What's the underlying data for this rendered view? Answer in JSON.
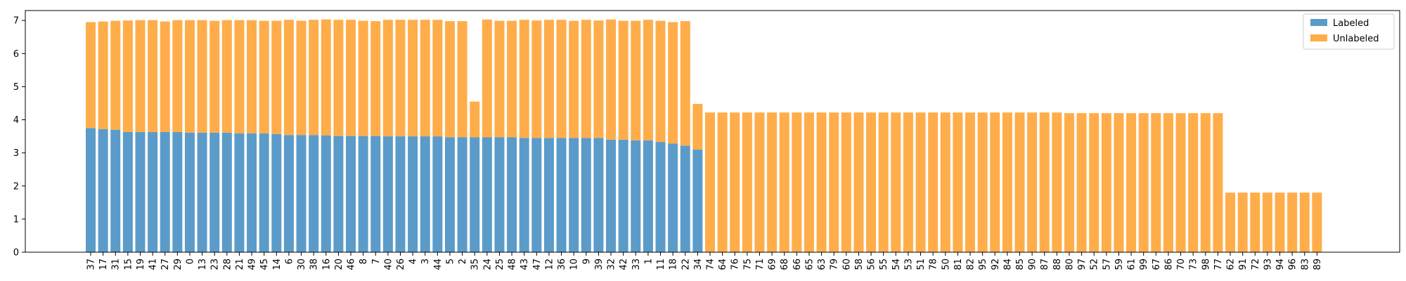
{
  "chart_data": {
    "type": "bar",
    "stacked": true,
    "title": "",
    "xlabel": "",
    "ylabel": "",
    "ylim": [
      0,
      7.3
    ],
    "yticks": [
      0,
      1,
      2,
      3,
      4,
      5,
      6,
      7
    ],
    "grid": false,
    "legend_position": "top-right",
    "categories": [
      "37",
      "17",
      "31",
      "15",
      "19",
      "41",
      "27",
      "29",
      "0",
      "13",
      "23",
      "28",
      "21",
      "49",
      "45",
      "14",
      "6",
      "30",
      "38",
      "16",
      "20",
      "46",
      "8",
      "7",
      "40",
      "26",
      "4",
      "3",
      "44",
      "5",
      "2",
      "35",
      "24",
      "25",
      "48",
      "43",
      "47",
      "12",
      "36",
      "10",
      "9",
      "39",
      "32",
      "42",
      "33",
      "1",
      "11",
      "18",
      "22",
      "34",
      "74",
      "64",
      "76",
      "75",
      "71",
      "69",
      "68",
      "66",
      "65",
      "63",
      "79",
      "60",
      "58",
      "56",
      "55",
      "54",
      "53",
      "51",
      "78",
      "50",
      "81",
      "82",
      "95",
      "92",
      "84",
      "85",
      "90",
      "87",
      "88",
      "80",
      "97",
      "52",
      "57",
      "59",
      "61",
      "99",
      "67",
      "86",
      "70",
      "73",
      "98",
      "77",
      "62",
      "91",
      "72",
      "93",
      "94",
      "96",
      "83",
      "89"
    ],
    "series": [
      {
        "name": "Labeled",
        "color": "#5b9bc9",
        "values": [
          3.75,
          3.72,
          3.7,
          3.63,
          3.63,
          3.63,
          3.63,
          3.63,
          3.61,
          3.61,
          3.61,
          3.61,
          3.59,
          3.59,
          3.59,
          3.57,
          3.54,
          3.54,
          3.54,
          3.53,
          3.51,
          3.51,
          3.51,
          3.51,
          3.5,
          3.5,
          3.5,
          3.5,
          3.5,
          3.47,
          3.47,
          3.47,
          3.47,
          3.47,
          3.47,
          3.45,
          3.45,
          3.45,
          3.45,
          3.45,
          3.45,
          3.45,
          3.4,
          3.4,
          3.38,
          3.38,
          3.33,
          3.28,
          3.22,
          3.1,
          0,
          0,
          0,
          0,
          0,
          0,
          0,
          0,
          0,
          0,
          0,
          0,
          0,
          0,
          0,
          0,
          0,
          0,
          0,
          0,
          0,
          0,
          0,
          0,
          0,
          0,
          0,
          0,
          0,
          0,
          0,
          0,
          0,
          0,
          0,
          0,
          0,
          0,
          0,
          0,
          0,
          0,
          0,
          0,
          0,
          0,
          0,
          0,
          0,
          0
        ]
      },
      {
        "name": "Unlabeled",
        "color": "#ffad4a",
        "values": [
          3.2,
          3.25,
          3.29,
          3.37,
          3.38,
          3.38,
          3.34,
          3.38,
          3.4,
          3.4,
          3.38,
          3.4,
          3.42,
          3.42,
          3.4,
          3.42,
          3.48,
          3.45,
          3.48,
          3.5,
          3.51,
          3.51,
          3.48,
          3.47,
          3.52,
          3.52,
          3.52,
          3.52,
          3.52,
          3.51,
          3.51,
          1.08,
          3.56,
          3.52,
          3.52,
          3.57,
          3.55,
          3.57,
          3.57,
          3.54,
          3.57,
          3.55,
          3.63,
          3.59,
          3.61,
          3.64,
          3.66,
          3.67,
          3.76,
          1.38,
          4.22,
          4.22,
          4.22,
          4.22,
          4.22,
          4.22,
          4.22,
          4.22,
          4.22,
          4.22,
          4.22,
          4.22,
          4.22,
          4.22,
          4.22,
          4.22,
          4.22,
          4.22,
          4.22,
          4.22,
          4.22,
          4.22,
          4.22,
          4.22,
          4.22,
          4.22,
          4.22,
          4.22,
          4.22,
          4.2,
          4.2,
          4.2,
          4.2,
          4.2,
          4.2,
          4.2,
          4.2,
          4.2,
          4.2,
          4.2,
          4.2,
          4.2,
          1.8,
          1.8,
          1.8,
          1.8,
          1.8,
          1.8,
          1.8,
          1.8
        ]
      }
    ]
  }
}
